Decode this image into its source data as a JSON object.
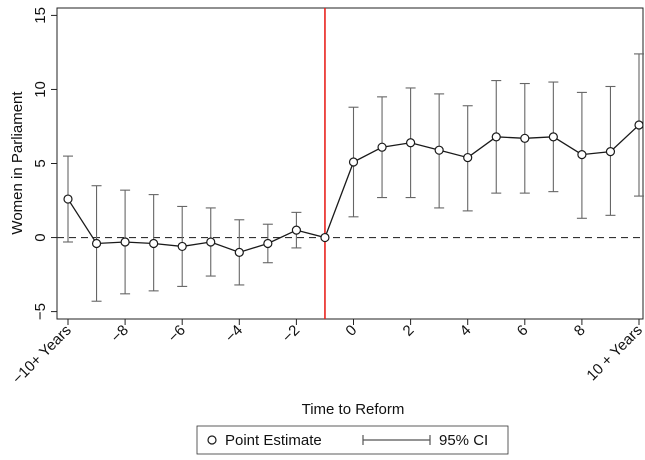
{
  "chart_data": {
    "type": "scatter",
    "xlabel": "Time to Reform",
    "ylabel": "Women in Parliament",
    "x": [
      -10,
      -9,
      -8,
      -7,
      -6,
      -5,
      -4,
      -3,
      -2,
      -1,
      0,
      1,
      2,
      3,
      4,
      5,
      6,
      7,
      8,
      9,
      10
    ],
    "xlim": [
      -10,
      10
    ],
    "ylim": [
      -5.5,
      15.5
    ],
    "x_ticks": [
      {
        "x": -10,
        "label": "−10+ Years"
      },
      {
        "x": -8,
        "label": "−8"
      },
      {
        "x": -6,
        "label": "−6"
      },
      {
        "x": -4,
        "label": "−4"
      },
      {
        "x": -2,
        "label": "−2"
      },
      {
        "x": 0,
        "label": "0"
      },
      {
        "x": 2,
        "label": "2"
      },
      {
        "x": 4,
        "label": "4"
      },
      {
        "x": 6,
        "label": "6"
      },
      {
        "x": 8,
        "label": "8"
      },
      {
        "x": 10,
        "label": "10 + Years"
      }
    ],
    "y_ticks": [
      {
        "y": -5,
        "label": "−5"
      },
      {
        "y": 0,
        "label": "0"
      },
      {
        "y": 5,
        "label": "5"
      },
      {
        "y": 10,
        "label": "10"
      },
      {
        "y": 15,
        "label": "15"
      }
    ],
    "reference_lines": {
      "vertical_x": -1,
      "vertical_color": "#e8231f",
      "horizontal_y": 0,
      "horizontal_style": "dashed"
    },
    "series": [
      {
        "name": "Point Estimate",
        "values": [
          2.6,
          -0.4,
          -0.3,
          -0.4,
          -0.6,
          -0.3,
          -1.0,
          -0.4,
          0.5,
          0.0,
          5.1,
          6.1,
          6.4,
          5.9,
          5.4,
          6.8,
          6.7,
          6.8,
          5.6,
          5.8,
          7.6
        ]
      },
      {
        "name": "95% CI",
        "lower": [
          -0.3,
          -4.3,
          -3.8,
          -3.6,
          -3.3,
          -2.6,
          -3.2,
          -1.7,
          -0.7,
          0.0,
          1.4,
          2.7,
          2.7,
          2.0,
          1.8,
          3.0,
          3.0,
          3.1,
          1.3,
          1.5,
          2.8
        ],
        "upper": [
          5.5,
          3.5,
          3.2,
          2.9,
          2.1,
          2.0,
          1.2,
          0.9,
          1.7,
          0.0,
          8.8,
          9.5,
          10.1,
          9.7,
          8.9,
          10.6,
          10.4,
          10.5,
          9.8,
          10.2,
          12.4
        ]
      }
    ],
    "grid": false,
    "legend_position": "bottom-center"
  },
  "legend": {
    "point_label": "Point Estimate",
    "ci_label": "95% CI"
  },
  "colors": {
    "series": "#1a1a1a",
    "reference_vertical": "#e8231f"
  }
}
